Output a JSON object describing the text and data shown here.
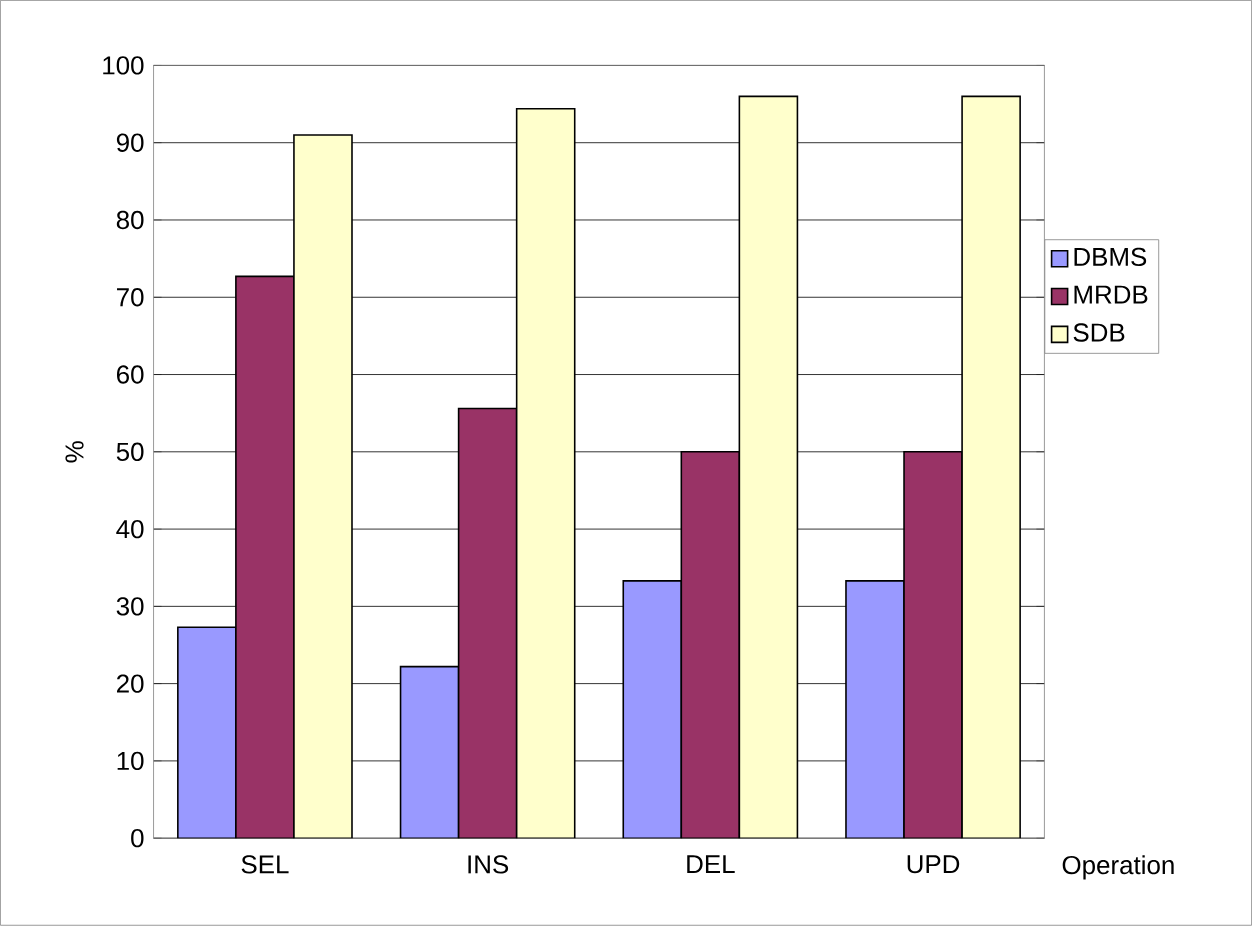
{
  "chart_data": {
    "type": "bar",
    "xlabel": "Operation",
    "ylabel": "%",
    "categories": [
      "SEL",
      "INS",
      "DEL",
      "UPD"
    ],
    "series": [
      {
        "name": "DBMS",
        "color": "#9999ff",
        "values": [
          27.3,
          22.2,
          33.3,
          33.3
        ]
      },
      {
        "name": "MRDB",
        "color": "#993366",
        "values": [
          72.7,
          55.6,
          50,
          50
        ]
      },
      {
        "name": "SDB",
        "color": "#ffffcc",
        "values": [
          91,
          94.4,
          96,
          96
        ]
      }
    ],
    "ylim": [
      0,
      100
    ],
    "yticks": [
      0,
      10,
      20,
      30,
      40,
      50,
      60,
      70,
      80,
      90,
      100
    ],
    "grid": "y",
    "legend": "right"
  }
}
